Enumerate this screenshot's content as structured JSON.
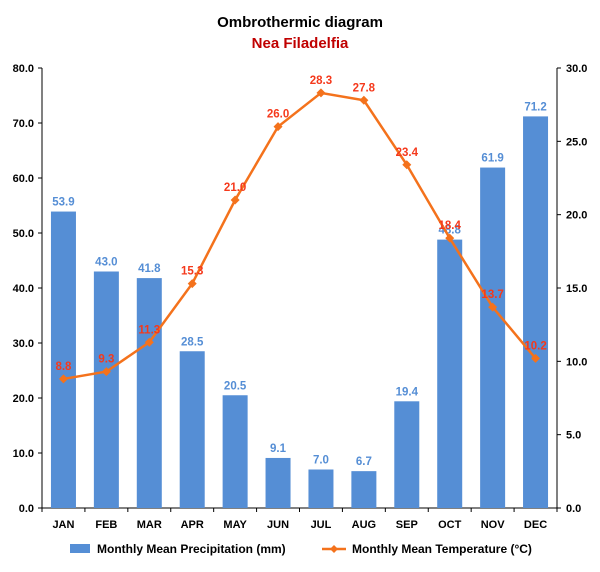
{
  "chart_data": {
    "type": "bar",
    "title": "Ombrothermic diagram",
    "subtitle": "Nea Filadelfia",
    "categories": [
      "JAN",
      "FEB",
      "MAR",
      "APR",
      "MAY",
      "JUN",
      "JUL",
      "AUG",
      "SEP",
      "OCT",
      "NOV",
      "DEC"
    ],
    "series": [
      {
        "name": "Monthly Mean Precipitation (mm)",
        "type": "bar",
        "axis": "left",
        "values": [
          53.9,
          43.0,
          41.8,
          28.5,
          20.5,
          9.1,
          7.0,
          6.7,
          19.4,
          48.8,
          61.9,
          71.2
        ],
        "labels": [
          "53.9",
          "43.0",
          "41.8",
          "28.5",
          "20.5",
          "9.1",
          "7.0",
          "6.7",
          "19.4",
          "48.8",
          "61.9",
          "71.2"
        ]
      },
      {
        "name": "Monthly Mean Temperature (°C)",
        "type": "line",
        "axis": "right",
        "values": [
          8.8,
          9.3,
          11.3,
          15.3,
          21.0,
          26.0,
          28.3,
          27.8,
          23.4,
          18.4,
          13.7,
          10.2
        ],
        "labels": [
          "8.8",
          "9.3",
          "11.3",
          "15.3",
          "21.0",
          "26.0",
          "28.3",
          "27.8",
          "23.4",
          "18.4",
          "13.7",
          "10.2"
        ]
      }
    ],
    "y_left": {
      "lim": [
        0,
        80
      ],
      "ticks": [
        "0.0",
        "10.0",
        "20.0",
        "30.0",
        "40.0",
        "50.0",
        "60.0",
        "70.0",
        "80.0"
      ]
    },
    "y_right": {
      "lim": [
        0,
        30
      ],
      "ticks": [
        "0.0",
        "5.0",
        "10.0",
        "15.0",
        "20.0",
        "25.0",
        "30.0"
      ]
    },
    "grid": false,
    "legend_position": "bottom",
    "colors": {
      "bar": "#558ED5",
      "bar_label": "#558ED5",
      "line": "#F4721C",
      "line_label": "#F5391C",
      "subtitle": "#C00000",
      "axis": "#000000"
    }
  }
}
